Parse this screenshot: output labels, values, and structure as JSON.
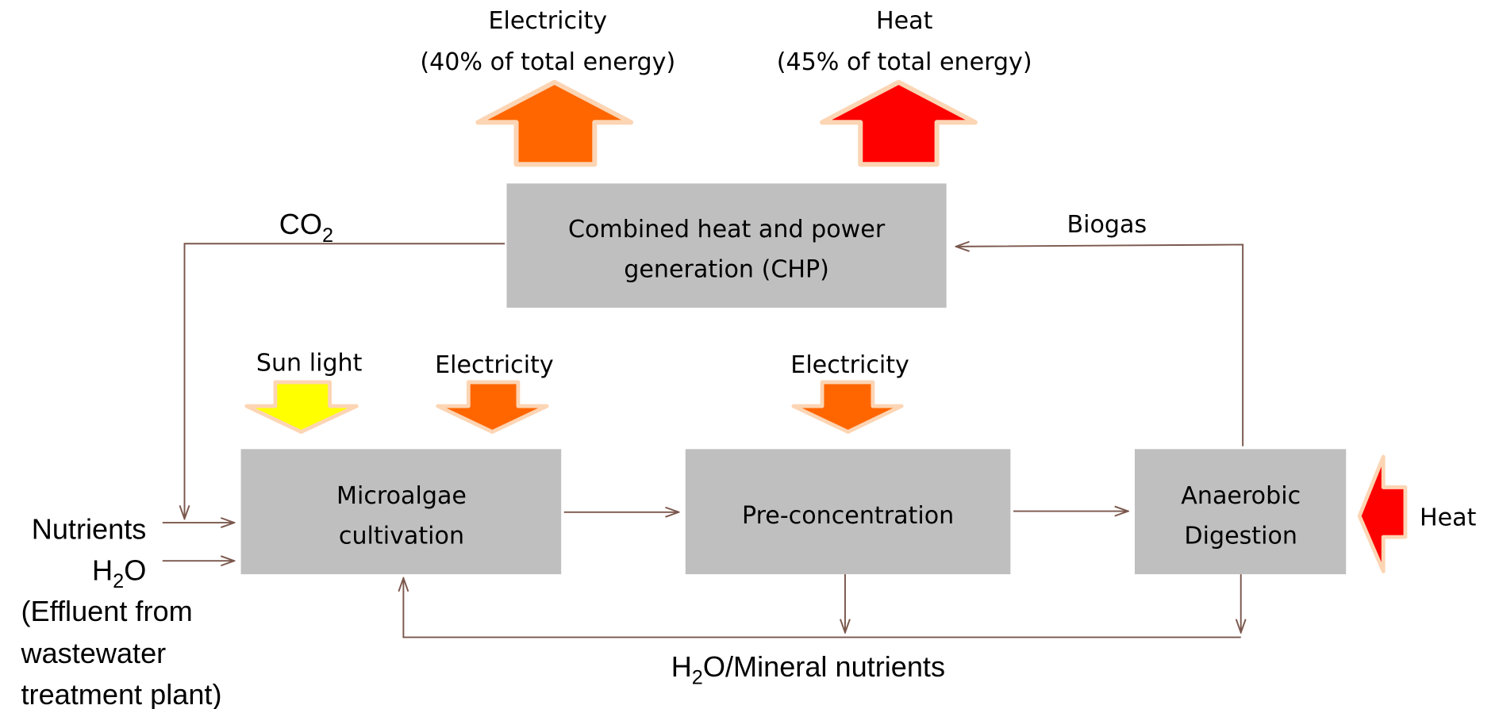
{
  "outputs": {
    "electricity": {
      "lines": [
        "Electricity",
        "(40% of total energy)"
      ]
    },
    "heat": {
      "lines": [
        "Heat",
        "(45% of total energy)"
      ]
    }
  },
  "nodes": {
    "chp": {
      "lines": [
        "Combined heat and power",
        "generation (CHP)"
      ]
    },
    "cultivation": {
      "lines": [
        "Microalgae",
        "cultivation"
      ]
    },
    "preconcentration": {
      "lines": [
        "Pre-concentration"
      ]
    },
    "digestion": {
      "lines": [
        "Anaerobic",
        "Digestion"
      ]
    }
  },
  "inputs": {
    "sunlight": "Sun light",
    "electricity_cultivation": "Electricity",
    "electricity_preconcentration": "Electricity",
    "heat_digestion": "Heat"
  },
  "flows": {
    "co2": {
      "text": "CO",
      "sub": "2"
    },
    "biogas": "Biogas",
    "nutrients": "Nutrients",
    "water": {
      "text": "H",
      "sub": "2",
      "rest": "O"
    },
    "effluent": [
      "(Effluent  from",
      "wastewater",
      "treatment plant)"
    ],
    "recycle": {
      "text": "H",
      "sub": "2",
      "rest": "O/Mineral nutrients"
    }
  }
}
